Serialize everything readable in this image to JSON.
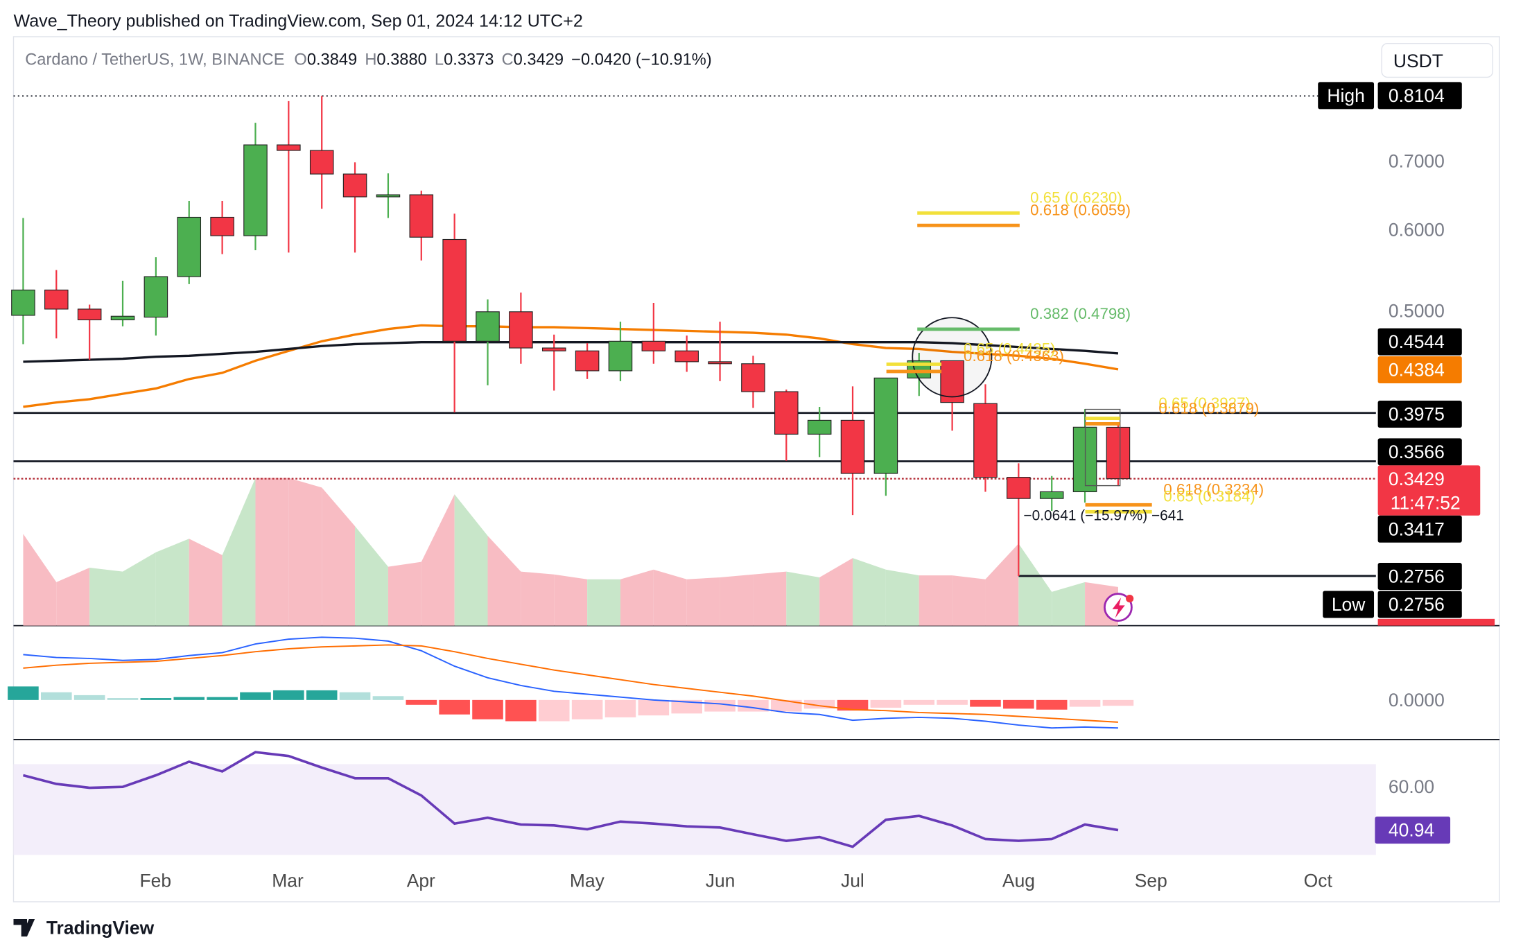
{
  "header": {
    "publisher": "Wave_Theory published on TradingView.com, Sep 01, 2024 14:12 UTC+2",
    "symbol": "Cardano / TetherUS, 1W, BINANCE",
    "ohlc": [
      {
        "label": "O",
        "value": "0.3849"
      },
      {
        "label": "H",
        "value": "0.3880"
      },
      {
        "label": "L",
        "value": "0.3373"
      },
      {
        "label": "C",
        "value": "0.3429"
      }
    ],
    "change": "−0.0420 (−10.91%)",
    "currency": "USDT"
  },
  "footer": {
    "logo": "TradingView"
  },
  "chart_data": {
    "type": "candlestick",
    "log_scale": true,
    "up_color": "#4caf50",
    "down_color": "#f23645",
    "open": [
      0.495,
      0.524,
      0.502,
      0.49,
      0.493,
      0.54,
      0.617,
      0.592,
      0.726,
      0.717,
      0.68,
      0.646,
      0.649,
      0.587,
      0.467,
      0.499,
      0.46,
      0.457,
      0.437,
      0.467,
      0.457,
      0.446,
      0.444,
      0.417,
      0.379,
      0.391,
      0.347,
      0.43,
      0.447,
      0.406,
      0.344,
      0.328,
      0.333,
      0.3849
    ],
    "high": [
      0.616,
      0.548,
      0.507,
      0.535,
      0.564,
      0.64,
      0.64,
      0.763,
      0.801,
      0.8104,
      0.698,
      0.681,
      0.655,
      0.622,
      0.513,
      0.521,
      0.474,
      0.465,
      0.488,
      0.509,
      0.473,
      0.488,
      0.452,
      0.419,
      0.403,
      0.422,
      0.43,
      0.455,
      0.447,
      0.424,
      0.355,
      0.345,
      0.401,
      0.388
    ],
    "low": [
      0.464,
      0.47,
      0.448,
      0.483,
      0.473,
      0.531,
      0.568,
      0.573,
      0.57,
      0.629,
      0.57,
      0.616,
      0.56,
      0.398,
      0.423,
      0.444,
      0.418,
      0.429,
      0.427,
      0.444,
      0.436,
      0.427,
      0.402,
      0.357,
      0.36,
      0.316,
      0.33,
      0.413,
      0.382,
      0.333,
      0.2756,
      0.319,
      0.325,
      0.3373
    ],
    "close": [
      0.524,
      0.502,
      0.49,
      0.494,
      0.54,
      0.617,
      0.592,
      0.726,
      0.717,
      0.68,
      0.646,
      0.649,
      0.59,
      0.467,
      0.499,
      0.46,
      0.457,
      0.437,
      0.467,
      0.457,
      0.446,
      0.444,
      0.417,
      0.379,
      0.391,
      0.347,
      0.43,
      0.447,
      0.407,
      0.344,
      0.328,
      0.333,
      0.385,
      0.3429
    ],
    "ylim": [
      0.2465,
      0.9218
    ],
    "yticks": [
      {
        "value": 0.5,
        "label": "0.5000"
      },
      {
        "value": 0.6,
        "label": "0.6000"
      },
      {
        "value": 0.7,
        "label": "0.7000"
      }
    ],
    "xtick_labels": [
      "Feb",
      "Mar",
      "Apr",
      "May",
      "Jun",
      "Jul",
      "Aug",
      "Sep",
      "Oct"
    ],
    "moving_averages": [
      {
        "color": "#f57c00",
        "values": [
          0.403,
          0.407,
          0.41,
          0.415,
          0.42,
          0.429,
          0.435,
          0.447,
          0.457,
          0.467,
          0.474,
          0.48,
          0.484,
          0.483,
          0.483,
          0.482,
          0.482,
          0.481,
          0.48,
          0.479,
          0.478,
          0.477,
          0.476,
          0.474,
          0.47,
          0.464,
          0.46,
          0.459,
          0.456,
          0.454,
          0.452,
          0.449,
          0.444,
          0.4384
        ]
      },
      {
        "color": "#131722",
        "values": [
          0.446,
          0.447,
          0.448,
          0.449,
          0.451,
          0.452,
          0.454,
          0.456,
          0.459,
          0.462,
          0.464,
          0.465,
          0.466,
          0.466,
          0.466,
          0.466,
          0.466,
          0.466,
          0.466,
          0.466,
          0.466,
          0.466,
          0.466,
          0.466,
          0.466,
          0.466,
          0.466,
          0.466,
          0.465,
          0.463,
          0.461,
          0.459,
          0.457,
          0.4544
        ]
      }
    ],
    "price_labels": [
      {
        "value": 0.8104,
        "color": "#000000",
        "tag": "High"
      },
      {
        "value": 0.4544,
        "color": "#000000"
      },
      {
        "value": 0.4384,
        "color": "#f57c00"
      },
      {
        "value": 0.3975,
        "color": "#000000"
      },
      {
        "value": 0.3566,
        "color": "#000000"
      },
      {
        "value": 0.3429,
        "color": "#f23645",
        "countdown": "11:47:52"
      },
      {
        "value": 0.3417,
        "color": "#000000"
      },
      {
        "value": 0.2756,
        "color": "#000000"
      },
      {
        "value": 0.2756,
        "color": "#000000",
        "tag": "Low"
      }
    ],
    "fib_levels": [
      {
        "label": "0.65 (0.6230)",
        "value": 0.623,
        "color": "#f2e03a"
      },
      {
        "label": "0.618 (0.6059)",
        "value": 0.6059,
        "color": "#f7931a"
      },
      {
        "label": "0.382 (0.4798)",
        "value": 0.4798,
        "color": "#66bb6a"
      },
      {
        "label": "0.65 (0.4435)",
        "value": 0.4435,
        "color": "#f2e03a"
      },
      {
        "label": "0.618 (0.4363)",
        "value": 0.4363,
        "color": "#f7931a"
      },
      {
        "label": "0.65 (0.3927)",
        "value": 0.3927,
        "color": "#f2e03a"
      },
      {
        "label": "0.618 (0.3879)",
        "value": 0.3879,
        "color": "#f7931a"
      },
      {
        "label": "0.618 (0.3234)",
        "value": 0.3234,
        "color": "#f7931a"
      },
      {
        "label": "0.65 (0.3184)",
        "value": 0.3184,
        "color": "#f2e03a"
      }
    ],
    "measure": "−0.0641 (−15.97%) −641",
    "volume": {
      "values": [
        95,
        45,
        60,
        56,
        76,
        90,
        73,
        153,
        153,
        143,
        103,
        61,
        66,
        136,
        93,
        56,
        53,
        48,
        48,
        58,
        48,
        50,
        53,
        56,
        50,
        70,
        58,
        52,
        52,
        48,
        85,
        35,
        45,
        40
      ],
      "ylim": [
        0,
        608
      ],
      "up_color": "#c8e6c9",
      "down_color": "#f8bcc3"
    },
    "macd": {
      "macd": [
        0.047,
        0.044,
        0.043,
        0.041,
        0.042,
        0.046,
        0.049,
        0.058,
        0.063,
        0.065,
        0.064,
        0.061,
        0.051,
        0.035,
        0.023,
        0.015,
        0.009,
        0.006,
        0.003,
        0.0,
        -0.002,
        -0.004,
        -0.008,
        -0.013,
        -0.015,
        -0.021,
        -0.019,
        -0.018,
        -0.019,
        -0.022,
        -0.026,
        -0.029,
        -0.028,
        -0.029
      ],
      "signal": [
        0.033,
        0.036,
        0.038,
        0.039,
        0.04,
        0.043,
        0.046,
        0.05,
        0.053,
        0.055,
        0.056,
        0.057,
        0.056,
        0.05,
        0.043,
        0.037,
        0.031,
        0.026,
        0.021,
        0.016,
        0.012,
        0.008,
        0.004,
        -0.001,
        -0.006,
        -0.01,
        -0.011,
        -0.013,
        -0.014,
        -0.015,
        -0.017,
        -0.019,
        -0.021,
        -0.023
      ],
      "histogram": [
        0.014,
        0.008,
        0.005,
        0.002,
        0.002,
        0.003,
        0.003,
        0.008,
        0.01,
        0.01,
        0.008,
        0.004,
        -0.005,
        -0.015,
        -0.02,
        -0.022,
        -0.022,
        -0.02,
        -0.018,
        -0.016,
        -0.014,
        -0.012,
        -0.012,
        -0.012,
        -0.009,
        -0.011,
        -0.008,
        -0.005,
        -0.005,
        -0.007,
        -0.009,
        -0.01,
        -0.007,
        -0.006
      ],
      "ylim": [
        -0.041,
        0.077
      ],
      "yticks": [
        {
          "value": 0,
          "label": "0.0000"
        }
      ],
      "macd_color": "#2962ff",
      "signal_color": "#ff6d00"
    },
    "rsi": {
      "values": [
        65.1,
        61.3,
        59.6,
        60.0,
        65.1,
        71.1,
        66.8,
        75.3,
        73.6,
        68.5,
        63.8,
        63.8,
        56.2,
        43.8,
        46.4,
        43.4,
        43.0,
        41.3,
        44.7,
        43.8,
        42.6,
        42.1,
        39.1,
        36.2,
        37.9,
        33.6,
        45.5,
        47.2,
        43.0,
        37.0,
        36.2,
        37.0,
        43.4,
        40.94
      ],
      "ylim": [
        9.36,
        80.85
      ],
      "yticks": [
        {
          "value": 60,
          "label": "60.00"
        }
      ],
      "band": [
        30,
        70
      ],
      "color": "#673ab7",
      "band_color": "#f3eefa"
    }
  }
}
